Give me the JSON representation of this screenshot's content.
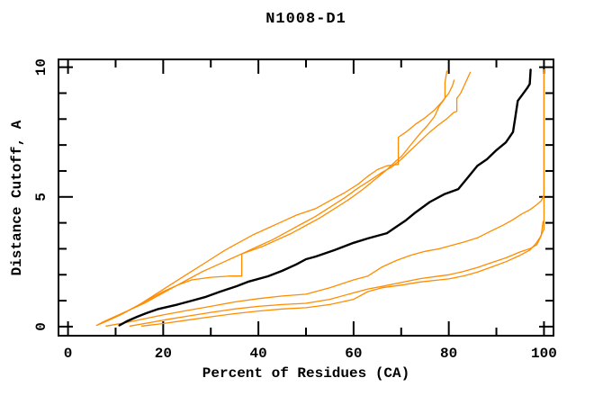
{
  "chart_data": {
    "type": "line",
    "title": "N1008-D1",
    "xlabel": "Percent of Residues (CA)",
    "ylabel": "Distance Cutoff, A",
    "xlim": [
      -2,
      102
    ],
    "ylim": [
      -0.35,
      10.3
    ],
    "x_ticks_labeled": [
      0,
      20,
      40,
      60,
      80,
      100
    ],
    "x_ticks_minor": [
      10,
      30,
      50,
      70,
      90
    ],
    "y_ticks_labeled": [
      0,
      5,
      10
    ],
    "y_ticks_minor": [
      1,
      2,
      3,
      4,
      6,
      7,
      8,
      9
    ],
    "grid": false,
    "legend_position": "none",
    "axis_color": "#000000",
    "background_color": "#ffffff",
    "series": [
      {
        "name": "orange-curve-1",
        "color": "#ff8c00",
        "stroke_width": 1.3,
        "points": [
          [
            6,
            0.05
          ],
          [
            8,
            0.2
          ],
          [
            11,
            0.45
          ],
          [
            14,
            0.75
          ],
          [
            17,
            1.05
          ],
          [
            20,
            1.35
          ],
          [
            23,
            1.6
          ],
          [
            26,
            1.8
          ],
          [
            30,
            1.9
          ],
          [
            34,
            1.95
          ],
          [
            36.5,
            1.95
          ],
          [
            36.5,
            2.8
          ],
          [
            38,
            2.9
          ],
          [
            41,
            3.1
          ],
          [
            44,
            3.35
          ],
          [
            47,
            3.6
          ],
          [
            50,
            3.9
          ],
          [
            53,
            4.2
          ],
          [
            56,
            4.55
          ],
          [
            59,
            4.9
          ],
          [
            62,
            5.3
          ],
          [
            65,
            5.75
          ],
          [
            67,
            6.05
          ],
          [
            69,
            6.4
          ],
          [
            70,
            6.55
          ],
          [
            72,
            7.0
          ],
          [
            74,
            7.45
          ],
          [
            75.5,
            7.75
          ],
          [
            77,
            8.1
          ],
          [
            78,
            8.5
          ],
          [
            79.2,
            8.8
          ],
          [
            79.2,
            9.4
          ],
          [
            79.6,
            9.85
          ]
        ]
      },
      {
        "name": "orange-curve-2",
        "color": "#ff8c00",
        "stroke_width": 1.3,
        "points": [
          [
            6.5,
            0.1
          ],
          [
            9,
            0.3
          ],
          [
            12,
            0.55
          ],
          [
            15,
            0.85
          ],
          [
            18,
            1.2
          ],
          [
            21,
            1.55
          ],
          [
            24,
            1.9
          ],
          [
            27,
            2.25
          ],
          [
            30,
            2.6
          ],
          [
            33,
            2.95
          ],
          [
            36,
            3.25
          ],
          [
            39,
            3.55
          ],
          [
            42,
            3.8
          ],
          [
            45,
            4.05
          ],
          [
            48,
            4.3
          ],
          [
            52,
            4.55
          ],
          [
            55,
            4.85
          ],
          [
            58,
            5.15
          ],
          [
            61,
            5.5
          ],
          [
            63,
            5.8
          ],
          [
            65,
            6.05
          ],
          [
            67,
            6.2
          ],
          [
            69.4,
            6.25
          ],
          [
            69.4,
            7.3
          ],
          [
            71,
            7.5
          ],
          [
            73,
            7.8
          ],
          [
            75,
            8.05
          ],
          [
            77,
            8.35
          ],
          [
            78.5,
            8.65
          ],
          [
            80,
            9.0
          ],
          [
            80.8,
            9.3
          ],
          [
            81.1,
            9.5
          ]
        ]
      },
      {
        "name": "orange-curve-3",
        "color": "#ff8c00",
        "stroke_width": 1.3,
        "points": [
          [
            7,
            0.15
          ],
          [
            10,
            0.4
          ],
          [
            13,
            0.65
          ],
          [
            16,
            0.9
          ],
          [
            19,
            1.2
          ],
          [
            22,
            1.5
          ],
          [
            25,
            1.8
          ],
          [
            28,
            2.1
          ],
          [
            31,
            2.35
          ],
          [
            34,
            2.6
          ],
          [
            37,
            2.85
          ],
          [
            40,
            3.1
          ],
          [
            43,
            3.35
          ],
          [
            46,
            3.65
          ],
          [
            49,
            3.95
          ],
          [
            52,
            4.25
          ],
          [
            55,
            4.6
          ],
          [
            58,
            4.95
          ],
          [
            61,
            5.35
          ],
          [
            64,
            5.7
          ],
          [
            66,
            5.95
          ],
          [
            68,
            6.15
          ],
          [
            70,
            6.45
          ],
          [
            72,
            6.8
          ],
          [
            74,
            7.15
          ],
          [
            76,
            7.5
          ],
          [
            78,
            7.8
          ],
          [
            79.5,
            8.0
          ],
          [
            81,
            8.25
          ],
          [
            81.7,
            8.3
          ],
          [
            81.7,
            8.8
          ],
          [
            82.5,
            9.0
          ],
          [
            83.5,
            9.4
          ],
          [
            84.5,
            9.8
          ]
        ]
      },
      {
        "name": "orange-curve-4",
        "color": "#ff8c00",
        "stroke_width": 1.3,
        "points": [
          [
            8,
            0.02
          ],
          [
            12,
            0.15
          ],
          [
            16,
            0.3
          ],
          [
            20,
            0.45
          ],
          [
            25,
            0.62
          ],
          [
            30,
            0.78
          ],
          [
            35,
            0.95
          ],
          [
            40,
            1.08
          ],
          [
            45,
            1.18
          ],
          [
            50,
            1.25
          ],
          [
            55,
            1.5
          ],
          [
            60,
            1.8
          ],
          [
            63,
            1.95
          ],
          [
            66,
            2.3
          ],
          [
            69,
            2.55
          ],
          [
            72,
            2.75
          ],
          [
            75,
            2.9
          ],
          [
            78,
            3.0
          ],
          [
            80,
            3.1
          ],
          [
            83,
            3.25
          ],
          [
            86,
            3.42
          ],
          [
            89,
            3.7
          ],
          [
            91.5,
            3.92
          ],
          [
            93.5,
            4.12
          ],
          [
            95.3,
            4.34
          ],
          [
            97,
            4.5
          ],
          [
            98.5,
            4.7
          ],
          [
            99.4,
            4.85
          ],
          [
            100,
            5.07
          ],
          [
            100,
            9.9
          ]
        ]
      },
      {
        "name": "orange-curve-5",
        "color": "#ff8c00",
        "stroke_width": 1.3,
        "points": [
          [
            13,
            0.02
          ],
          [
            17,
            0.15
          ],
          [
            21,
            0.28
          ],
          [
            25,
            0.4
          ],
          [
            30,
            0.55
          ],
          [
            35,
            0.68
          ],
          [
            40,
            0.78
          ],
          [
            45,
            0.85
          ],
          [
            50,
            0.9
          ],
          [
            55,
            1.05
          ],
          [
            60,
            1.3
          ],
          [
            63,
            1.45
          ],
          [
            66,
            1.55
          ],
          [
            70,
            1.7
          ],
          [
            74,
            1.85
          ],
          [
            78,
            1.95
          ],
          [
            80,
            2.0
          ],
          [
            83,
            2.12
          ],
          [
            86,
            2.28
          ],
          [
            89,
            2.47
          ],
          [
            92,
            2.65
          ],
          [
            95,
            2.88
          ],
          [
            97,
            3.0
          ],
          [
            98.5,
            3.16
          ],
          [
            99.4,
            3.5
          ],
          [
            99.8,
            4.05
          ]
        ]
      },
      {
        "name": "orange-curve-6",
        "color": "#ff8c00",
        "stroke_width": 1.3,
        "points": [
          [
            15.5,
            0.02
          ],
          [
            20,
            0.12
          ],
          [
            25,
            0.25
          ],
          [
            30,
            0.38
          ],
          [
            35,
            0.5
          ],
          [
            40,
            0.6
          ],
          [
            45,
            0.68
          ],
          [
            50,
            0.73
          ],
          [
            55,
            0.85
          ],
          [
            60,
            1.05
          ],
          [
            63,
            1.35
          ],
          [
            66,
            1.5
          ],
          [
            70,
            1.6
          ],
          [
            74,
            1.72
          ],
          [
            78,
            1.8
          ],
          [
            80,
            1.84
          ],
          [
            83,
            1.95
          ],
          [
            86,
            2.1
          ],
          [
            89,
            2.3
          ],
          [
            92,
            2.5
          ],
          [
            95,
            2.75
          ],
          [
            97,
            2.95
          ],
          [
            98.3,
            3.2
          ],
          [
            99.2,
            3.45
          ],
          [
            99.6,
            3.6
          ],
          [
            100,
            3.75
          ],
          [
            100,
            9.8
          ]
        ]
      },
      {
        "name": "black-curve",
        "color": "#000000",
        "stroke_width": 2.4,
        "points": [
          [
            10.8,
            0.05
          ],
          [
            12.5,
            0.22
          ],
          [
            14.5,
            0.38
          ],
          [
            16.5,
            0.52
          ],
          [
            19,
            0.68
          ],
          [
            23,
            0.85
          ],
          [
            26,
            1.0
          ],
          [
            29,
            1.15
          ],
          [
            32,
            1.35
          ],
          [
            35.5,
            1.56
          ],
          [
            38,
            1.74
          ],
          [
            42,
            1.94
          ],
          [
            45,
            2.15
          ],
          [
            48,
            2.4
          ],
          [
            50,
            2.6
          ],
          [
            52,
            2.7
          ],
          [
            56,
            2.95
          ],
          [
            60,
            3.23
          ],
          [
            63,
            3.4
          ],
          [
            67,
            3.6
          ],
          [
            69,
            3.85
          ],
          [
            71,
            4.1
          ],
          [
            73,
            4.4
          ],
          [
            76,
            4.8
          ],
          [
            79,
            5.1
          ],
          [
            82,
            5.3
          ],
          [
            84,
            5.75
          ],
          [
            86,
            6.2
          ],
          [
            88,
            6.45
          ],
          [
            90,
            6.8
          ],
          [
            92,
            7.1
          ],
          [
            93.5,
            7.5
          ],
          [
            94,
            8.1
          ],
          [
            94.5,
            8.7
          ],
          [
            95.5,
            8.95
          ],
          [
            96.5,
            9.2
          ],
          [
            97,
            9.35
          ],
          [
            97.2,
            9.9
          ]
        ]
      }
    ]
  }
}
